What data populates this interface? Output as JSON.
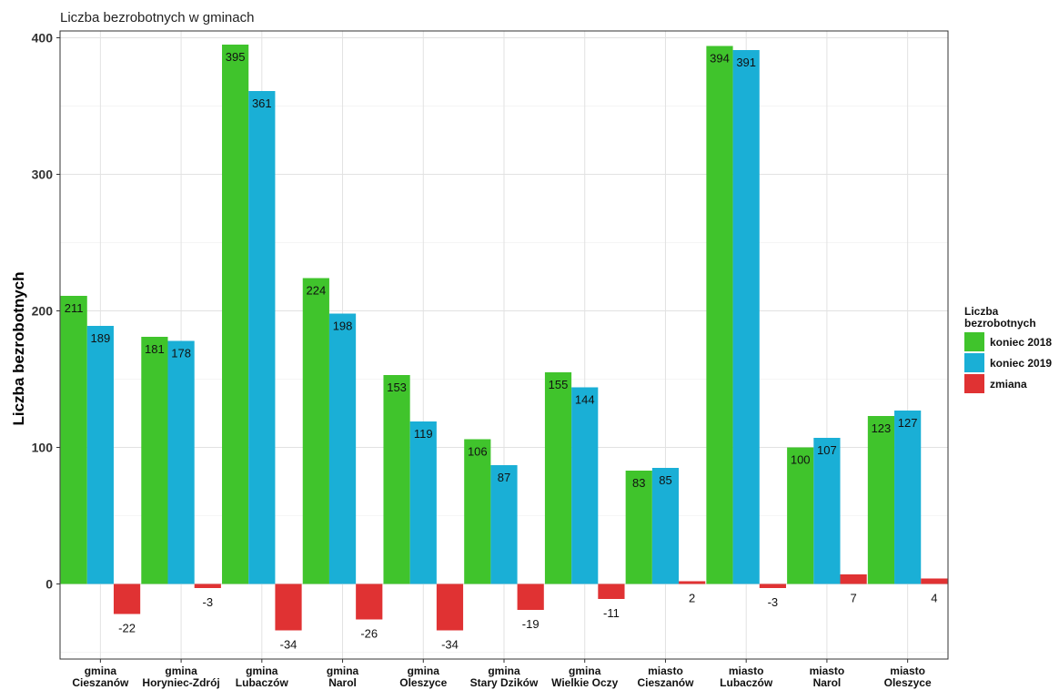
{
  "chart_data": {
    "type": "bar",
    "title": "Liczba bezrobotnych w gminach",
    "ylabel": "Liczba bezrobotnych",
    "xlabel": "",
    "ylim": [
      -55,
      405
    ],
    "yticks": [
      0,
      100,
      200,
      300,
      400
    ],
    "grid": true,
    "legend": {
      "title": "Liczba bezrobotnych",
      "title_lines": [
        "Liczba",
        "bezrobotnych"
      ],
      "placement": "right"
    },
    "categories": [
      [
        "gmina",
        "Cieszanów"
      ],
      [
        "gmina",
        "Horyniec-Zdrój"
      ],
      [
        "gmina",
        "Lubaczów"
      ],
      [
        "gmina",
        "Narol"
      ],
      [
        "gmina",
        "Oleszyce"
      ],
      [
        "gmina",
        "Stary Dzików"
      ],
      [
        "gmina",
        "Wielkie Oczy"
      ],
      [
        "miasto",
        "Cieszanów"
      ],
      [
        "miasto",
        "Lubaczów"
      ],
      [
        "miasto",
        "Narol"
      ],
      [
        "miasto",
        "Oleszyce"
      ]
    ],
    "series": [
      {
        "name": "koniec 2018",
        "color": "#40c42c",
        "values": [
          211,
          181,
          395,
          224,
          153,
          106,
          155,
          83,
          394,
          100,
          123
        ]
      },
      {
        "name": "koniec 2019",
        "color": "#1aafd6",
        "values": [
          189,
          178,
          361,
          198,
          119,
          87,
          144,
          85,
          391,
          107,
          127
        ]
      },
      {
        "name": "zmiana",
        "color": "#e03233",
        "values": [
          -22,
          -3,
          -34,
          -26,
          -34,
          -19,
          -11,
          2,
          -3,
          7,
          4
        ]
      }
    ]
  }
}
